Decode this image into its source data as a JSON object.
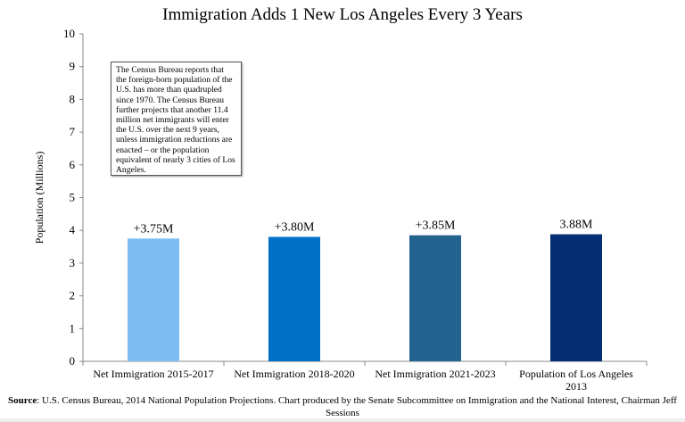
{
  "chart_data": {
    "type": "bar",
    "title": "Immigration Adds 1 New Los Angeles Every 3 Years",
    "xlabel": "",
    "ylabel": "Population (Millions)",
    "ylim": [
      0,
      10
    ],
    "yticks": [
      0,
      1,
      2,
      3,
      4,
      5,
      6,
      7,
      8,
      9,
      10
    ],
    "grid": false,
    "categories": [
      "Net Immigration 2015-2017",
      "Net Immigration 2018-2020",
      "Net Immigration 2021-2023",
      "Population of Los Angeles 2013"
    ],
    "values": [
      3.75,
      3.8,
      3.85,
      3.88
    ],
    "data_labels": [
      "+3.75M",
      "+3.80M",
      "+3.85M",
      "3.88M"
    ],
    "colors": [
      "#7dbdf4",
      "#0070c6",
      "#236390",
      "#042e74"
    ],
    "annotation": "The Census Bureau reports that the foreign-born population of the U.S. has more than quadrupled since 1970. The Census Bureau further projects that another 11.4 million net immigrants will enter the U.S. over the next 9 years, unless immigration reductions are enacted – or the population equivalent of nearly 3 cities of Los Angeles.",
    "source_label": "Source",
    "source_text": ": U.S. Census Bureau, 2014 National Population Projections. Chart produced by the Senate Subcommittee on Immigration and the National Interest, Chairman Jeff Sessions"
  }
}
